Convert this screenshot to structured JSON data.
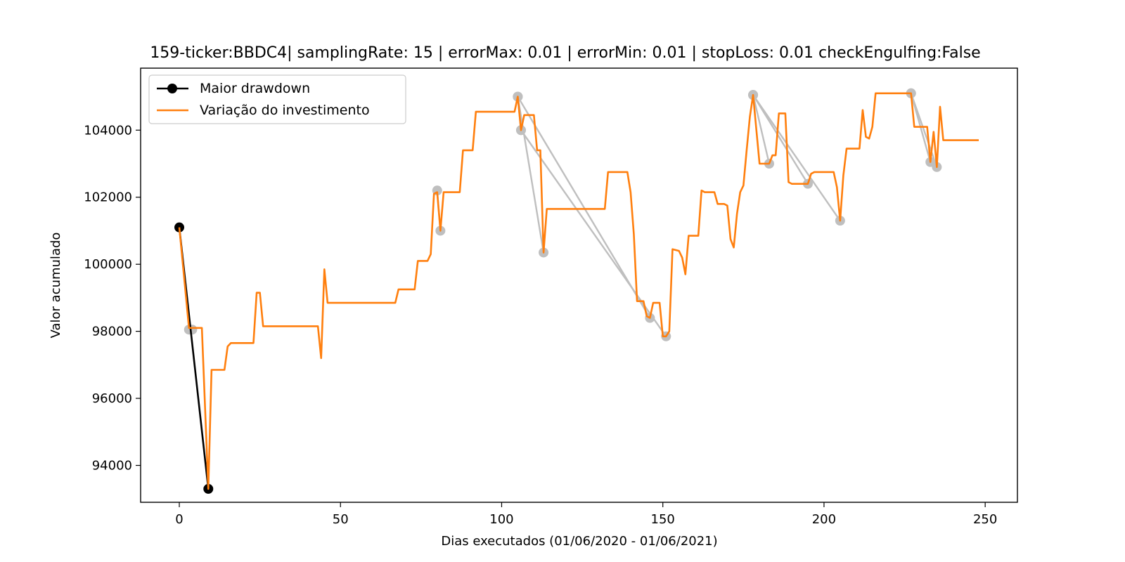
{
  "chart_data": {
    "type": "line",
    "title": "159-ticker:BBDC4| samplingRate: 15 | errorMax: 0.01 | errorMin: 0.01 | stopLoss: 0.01 checkEngulfing:False",
    "xlabel": "Dias executados (01/06/2020 - 01/06/2021)",
    "ylabel": "Valor acumulado",
    "xlim": [
      -12,
      260
    ],
    "ylim": [
      92900,
      105850
    ],
    "xticks": [
      0,
      50,
      100,
      150,
      200,
      250
    ],
    "yticks": [
      94000,
      96000,
      98000,
      100000,
      102000,
      104000
    ],
    "legend": {
      "position": "top-left"
    },
    "colors": {
      "investment": "#ff7f0e",
      "drawdown": "#000000",
      "other_drawdowns": "#bfbfbf"
    },
    "series": [
      {
        "name": "Maior drawdown",
        "style": "line-marker",
        "color": "#000000",
        "points": [
          [
            0,
            101100
          ],
          [
            9,
            93300
          ]
        ]
      },
      {
        "name": "Variação do investimento",
        "style": "line",
        "color": "#ff7f0e",
        "points": [
          [
            0,
            101100
          ],
          [
            3,
            98100
          ],
          [
            4,
            98100
          ],
          [
            7,
            98100
          ],
          [
            9,
            93300
          ],
          [
            10,
            96850
          ],
          [
            11,
            96850
          ],
          [
            14,
            96850
          ],
          [
            15,
            97550
          ],
          [
            16,
            97650
          ],
          [
            23,
            97650
          ],
          [
            24,
            99150
          ],
          [
            25,
            99150
          ],
          [
            26,
            98150
          ],
          [
            43,
            98150
          ],
          [
            44,
            97200
          ],
          [
            45,
            99850
          ],
          [
            46,
            98850
          ],
          [
            67,
            98850
          ],
          [
            68,
            99250
          ],
          [
            73,
            99250
          ],
          [
            74,
            100100
          ],
          [
            77,
            100100
          ],
          [
            78,
            100300
          ],
          [
            79,
            102100
          ],
          [
            80,
            102150
          ],
          [
            81,
            101000
          ],
          [
            82,
            102150
          ],
          [
            87,
            102150
          ],
          [
            88,
            103400
          ],
          [
            91,
            103400
          ],
          [
            92,
            104550
          ],
          [
            104,
            104550
          ],
          [
            105,
            105000
          ],
          [
            106,
            104000
          ],
          [
            107,
            104450
          ],
          [
            110,
            104450
          ],
          [
            111,
            103400
          ],
          [
            112,
            103400
          ],
          [
            113,
            100350
          ],
          [
            114,
            101650
          ],
          [
            132,
            101650
          ],
          [
            133,
            102750
          ],
          [
            139,
            102750
          ],
          [
            140,
            102150
          ],
          [
            141,
            100900
          ],
          [
            142,
            98900
          ],
          [
            144,
            98900
          ],
          [
            145,
            98450
          ],
          [
            146,
            98400
          ],
          [
            147,
            98850
          ],
          [
            149,
            98850
          ],
          [
            150,
            97850
          ],
          [
            151,
            97850
          ],
          [
            152,
            98000
          ],
          [
            153,
            100450
          ],
          [
            155,
            100400
          ],
          [
            156,
            100200
          ],
          [
            157,
            99700
          ],
          [
            158,
            100850
          ],
          [
            161,
            100850
          ],
          [
            162,
            102200
          ],
          [
            163,
            102150
          ],
          [
            166,
            102150
          ],
          [
            167,
            101800
          ],
          [
            169,
            101800
          ],
          [
            170,
            101750
          ],
          [
            171,
            100750
          ],
          [
            172,
            100500
          ],
          [
            173,
            101500
          ],
          [
            174,
            102150
          ],
          [
            175,
            102350
          ],
          [
            176,
            103400
          ],
          [
            177,
            104400
          ],
          [
            178,
            105050
          ],
          [
            180,
            103000
          ],
          [
            183,
            103000
          ],
          [
            184,
            103250
          ],
          [
            185,
            103250
          ],
          [
            186,
            104500
          ],
          [
            188,
            104500
          ],
          [
            189,
            102450
          ],
          [
            190,
            102400
          ],
          [
            195,
            102400
          ],
          [
            196,
            102700
          ],
          [
            197,
            102750
          ],
          [
            203,
            102750
          ],
          [
            204,
            102300
          ],
          [
            205,
            101300
          ],
          [
            206,
            102650
          ],
          [
            207,
            103450
          ],
          [
            211,
            103450
          ],
          [
            212,
            104600
          ],
          [
            213,
            103800
          ],
          [
            214,
            103750
          ],
          [
            215,
            104100
          ],
          [
            216,
            105100
          ],
          [
            227,
            105100
          ],
          [
            228,
            104100
          ],
          [
            232,
            104100
          ],
          [
            233,
            103050
          ],
          [
            234,
            103950
          ],
          [
            235,
            102900
          ],
          [
            236,
            104700
          ],
          [
            237,
            103700
          ],
          [
            248,
            103700
          ]
        ]
      }
    ],
    "other_drawdowns": [
      [
        [
          3,
          98050
        ],
        [
          4,
          98050
        ]
      ],
      [
        [
          80,
          102200
        ],
        [
          81,
          101000
        ]
      ],
      [
        [
          105,
          105000
        ],
        [
          106,
          104000
        ]
      ],
      [
        [
          105,
          105000
        ],
        [
          113,
          100350
        ]
      ],
      [
        [
          105,
          105000
        ],
        [
          146,
          98400
        ]
      ],
      [
        [
          106,
          104000
        ],
        [
          151,
          97850
        ]
      ],
      [
        [
          178,
          105050
        ],
        [
          183,
          103000
        ]
      ],
      [
        [
          178,
          105050
        ],
        [
          195,
          102400
        ]
      ],
      [
        [
          178,
          105050
        ],
        [
          205,
          101300
        ]
      ],
      [
        [
          227,
          105100
        ],
        [
          233,
          103050
        ]
      ],
      [
        [
          227,
          105100
        ],
        [
          235,
          102900
        ]
      ]
    ]
  }
}
